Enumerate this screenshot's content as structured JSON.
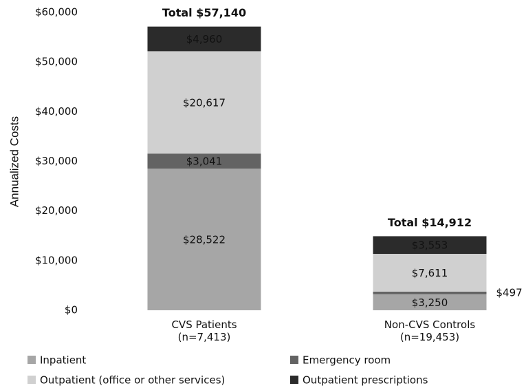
{
  "chart_data": {
    "type": "stacked_bar",
    "y_label": "Annualized Costs",
    "categories": [
      "CVS Patients\n(n=7,413)",
      "Non-CVS Controls\n(n=19,453)"
    ],
    "series": [
      {
        "name": "Inpatient",
        "color": "#a6a6a6",
        "label_color": "#111111",
        "values": [
          28522,
          3250
        ],
        "value_labels": [
          "$28,522",
          "$3,250"
        ]
      },
      {
        "name": "Emergency room",
        "color": "#636363",
        "label_color": "#ffffff",
        "values": [
          3041,
          497
        ],
        "value_labels": [
          "$3,041",
          "$497"
        ]
      },
      {
        "name": "Outpatient (office or other services)",
        "color": "#d0d0d0",
        "label_color": "#111111",
        "values": [
          20617,
          7611
        ],
        "value_labels": [
          "$20,617",
          "$7,611"
        ]
      },
      {
        "name": "Outpatient prescriptions",
        "color": "#2b2b2b",
        "label_color": "#ffffff",
        "values": [
          4960,
          3553
        ],
        "value_labels": [
          "$4,960",
          "$3,553"
        ]
      }
    ],
    "totals": {
      "values": [
        57140,
        14912
      ],
      "value_labels": [
        "Total $57,140",
        "Total $14,912"
      ]
    },
    "ylim": [
      0,
      60000
    ],
    "yticks": [
      {
        "value": 0,
        "label": "$0"
      },
      {
        "value": 10000,
        "label": "$10,000"
      },
      {
        "value": 20000,
        "label": "$20,000"
      },
      {
        "value": 30000,
        "label": "$30,000"
      },
      {
        "value": 40000,
        "label": "$40,000"
      },
      {
        "value": 50000,
        "label": "$50,000"
      },
      {
        "value": 60000,
        "label": "$60,000"
      }
    ],
    "grid": false
  }
}
